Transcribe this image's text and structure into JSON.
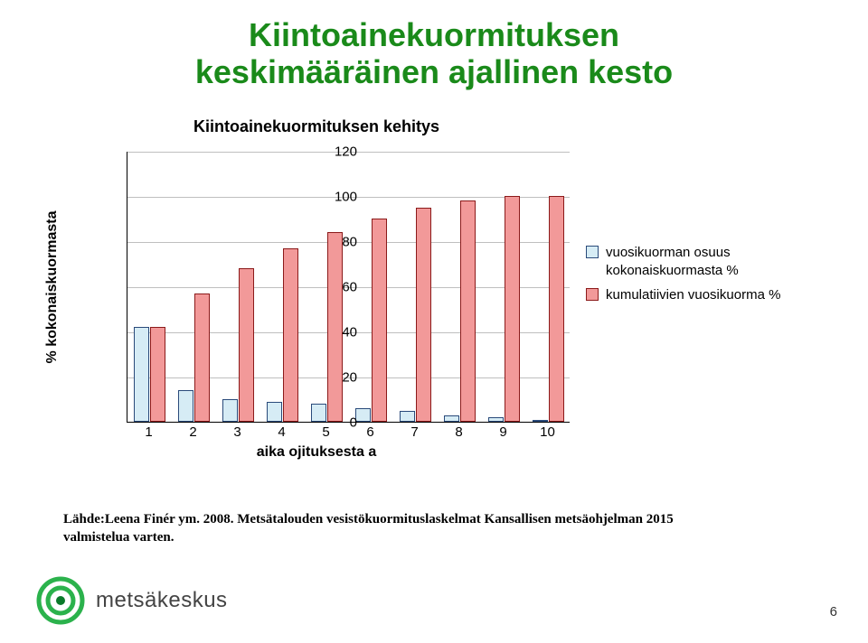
{
  "title_line1": "Kiintoainekuormituksen",
  "title_line2": "keskimääräinen ajallinen kesto",
  "chart": {
    "type": "bar",
    "title": "Kiintoainekuormituksen kehitys",
    "xlabel": "aika ojituksesta a",
    "ylabel": "% kokonaiskuormasta",
    "categories": [
      "1",
      "2",
      "3",
      "4",
      "5",
      "6",
      "7",
      "8",
      "9",
      "10"
    ],
    "series": [
      {
        "name": "vuosikuorman osuus kokonaiskuormasta %",
        "color": "#d6ecf5",
        "border": "#2a4a7a",
        "values": [
          42,
          14,
          10,
          9,
          8,
          6,
          5,
          3,
          2,
          1
        ]
      },
      {
        "name": "kumulatiivien vuosikuorma %",
        "color": "#f29999",
        "border": "#8b1a1a",
        "values": [
          42,
          57,
          68,
          77,
          84,
          90,
          95,
          98,
          100,
          100
        ]
      }
    ],
    "ylim": [
      0,
      120
    ],
    "ytick_step": 20,
    "grid_color": "#bfbfbf",
    "background_color": "#ffffff",
    "bar_group_width": 0.7,
    "title_fontsize": 18,
    "label_fontsize": 16,
    "tick_fontsize": 15
  },
  "legend": {
    "items": [
      {
        "swatch_color": "#d6ecf5",
        "border": "#2a4a7a",
        "label": "vuosikuorman osuus kokonaiskuormasta %"
      },
      {
        "swatch_color": "#f29999",
        "border": "#8b1a1a",
        "label": "kumulatiivien vuosikuorma %"
      }
    ]
  },
  "citation": "Lähde:Leena Finér ym. 2008. Metsätalouden vesistökuormituslaskelmat Kansallisen metsäohjelman 2015 valmistelua varten.",
  "footer_brand": "metsäkeskus",
  "page_number": "6",
  "colors": {
    "title": "#1a8a1a",
    "logo_outer": "#2bb24c",
    "logo_inner": "#0a7a2a"
  }
}
